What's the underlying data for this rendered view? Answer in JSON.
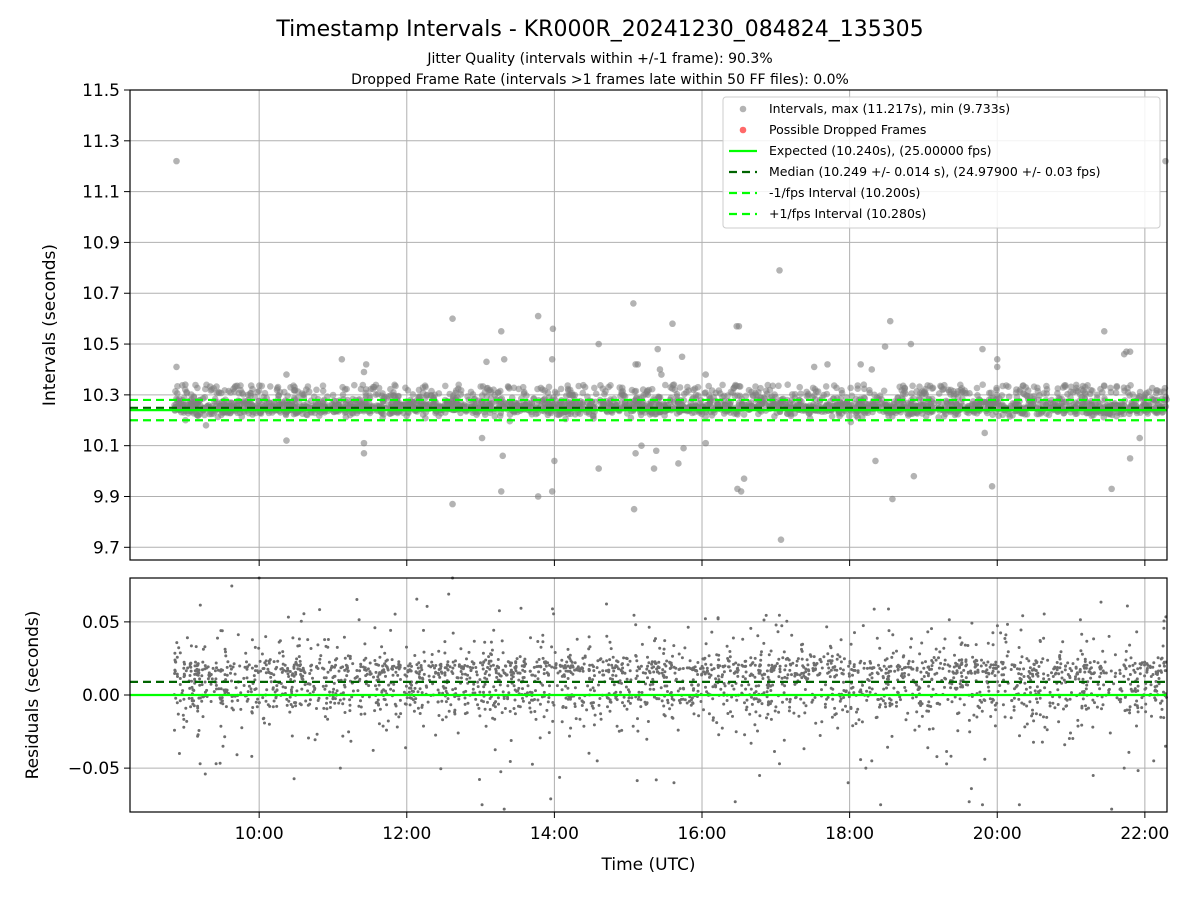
{
  "colors": {
    "scatter": "#808080",
    "dropped": "#ff4444",
    "expected": "#00ff00",
    "median": "#006400",
    "bounds": "#00ff00",
    "grid": "#b0b0b0"
  },
  "chart_data": {
    "type": "scatter",
    "title": "Timestamp Intervals - KR000R_20241230_084824_135305",
    "subtitle_lines": [
      "Jitter Quality (intervals within +/-1 frame): 90.3%",
      "Dropped Frame Rate (intervals >1 frames late within 50 FF files): 0.0%"
    ],
    "xlabel": "Time (UTC)",
    "x_range_hours": [
      8.25,
      22.3
    ],
    "x_ticks": [
      "10:00",
      "12:00",
      "14:00",
      "16:00",
      "18:00",
      "20:00",
      "22:00"
    ],
    "x_tick_hours": [
      10,
      12,
      14,
      16,
      18,
      20,
      22
    ],
    "top_panel": {
      "ylabel": "Intervals (seconds)",
      "ylim": [
        9.65,
        11.5
      ],
      "y_ticks": [
        "9.7",
        "9.9",
        "10.1",
        "10.3",
        "10.5",
        "10.7",
        "10.9",
        "11.1",
        "11.3",
        "11.5"
      ],
      "y_tick_values": [
        9.7,
        9.9,
        10.1,
        10.3,
        10.5,
        10.7,
        10.9,
        11.1,
        11.3,
        11.5
      ],
      "grid": true,
      "legend_position": "top-right",
      "legend": [
        "Intervals, max (11.217s), min (9.733s)",
        "Possible Dropped Frames",
        "Expected (10.240s), (25.00000 fps)",
        "Median (10.249 +/- 0.014 s), (24.97900 +/- 0.03 fps)",
        "-1/fps Interval (10.200s)",
        "+1/fps Interval (10.280s)"
      ],
      "lines": {
        "expected": 10.24,
        "median": 10.249,
        "minus_one_frame": 10.2,
        "plus_one_frame": 10.28
      },
      "series": [
        {
          "name": "Intervals, max (11.217s), min (9.733s)",
          "x": [
            8.88,
            8.88,
            9.0,
            9.28,
            9.67,
            9.85,
            10.37,
            10.37,
            11.12,
            11.42,
            11.42,
            11.42,
            11.45,
            12.62,
            12.62,
            13.02,
            13.08,
            13.28,
            13.28,
            13.3,
            13.32,
            13.78,
            13.78,
            13.97,
            13.97,
            13.98,
            14.0,
            14.6,
            14.6,
            15.07,
            15.08,
            15.1,
            15.1,
            15.13,
            15.18,
            15.35,
            15.38,
            15.4,
            15.43,
            15.45,
            15.6,
            15.62,
            15.68,
            15.73,
            15.75,
            16.05,
            16.05,
            16.47,
            16.48,
            16.5,
            16.53,
            16.57,
            17.05,
            17.07,
            17.52,
            17.7,
            18.15,
            18.3,
            18.35,
            18.48,
            18.55,
            18.58,
            18.83,
            18.87,
            19.8,
            19.83,
            19.93,
            20.0,
            20.0,
            21.45,
            21.55,
            21.72,
            21.75,
            21.8,
            21.8,
            21.93,
            22.28
          ],
          "y": [
            10.41,
            11.22,
            10.34,
            10.18,
            10.33,
            10.3,
            10.38,
            10.12,
            10.44,
            10.07,
            10.11,
            10.39,
            10.42,
            10.6,
            9.87,
            10.13,
            10.43,
            10.55,
            9.92,
            10.06,
            10.44,
            10.61,
            9.9,
            10.44,
            9.92,
            10.56,
            10.04,
            10.5,
            10.01,
            10.66,
            9.85,
            10.42,
            10.07,
            10.42,
            10.1,
            10.01,
            10.08,
            10.48,
            10.4,
            10.38,
            10.58,
            10.34,
            10.03,
            10.45,
            10.09,
            10.38,
            10.11,
            10.57,
            9.93,
            10.57,
            9.92,
            9.97,
            10.79,
            9.73,
            10.41,
            10.42,
            10.42,
            10.4,
            10.04,
            10.49,
            10.59,
            9.89,
            10.5,
            9.98,
            10.48,
            10.15,
            9.94,
            10.44,
            10.41,
            10.55,
            9.93,
            10.46,
            10.47,
            10.47,
            10.05,
            10.13,
            11.22
          ]
        },
        {
          "name": "Possible Dropped Frames",
          "x": [],
          "y": []
        }
      ]
    },
    "bottom_panel": {
      "ylabel": "Residuals (seconds)",
      "ylim": [
        -0.08,
        0.08
      ],
      "y_ticks": [
        "−0.05",
        "0.00",
        "0.05"
      ],
      "y_tick_values": [
        -0.05,
        0.0,
        0.05
      ],
      "grid": true,
      "lines": {
        "expected": 0.0,
        "median": 0.009
      },
      "series": [
        {
          "name": "Residuals",
          "x": [
            8.92,
            9.2,
            9.27,
            9.9,
            10.0,
            11.1,
            12.62,
            13.02,
            13.32,
            13.95,
            14.58,
            15.38,
            15.62,
            16.45,
            16.78,
            17.05,
            17.98,
            18.22,
            18.3,
            18.42,
            19.62,
            19.65,
            19.8,
            20.3,
            21.3,
            21.55,
            21.72,
            22.12,
            22.28
          ],
          "y": [
            -0.04,
            -0.047,
            -0.054,
            -0.042,
            0.08,
            -0.05,
            0.08,
            -0.075,
            -0.078,
            -0.071,
            -0.045,
            -0.058,
            -0.06,
            -0.073,
            -0.055,
            -0.047,
            -0.06,
            -0.05,
            -0.045,
            -0.075,
            -0.073,
            -0.064,
            -0.075,
            -0.075,
            -0.055,
            -0.078,
            -0.05,
            -0.045,
            -0.035
          ]
        }
      ]
    }
  }
}
